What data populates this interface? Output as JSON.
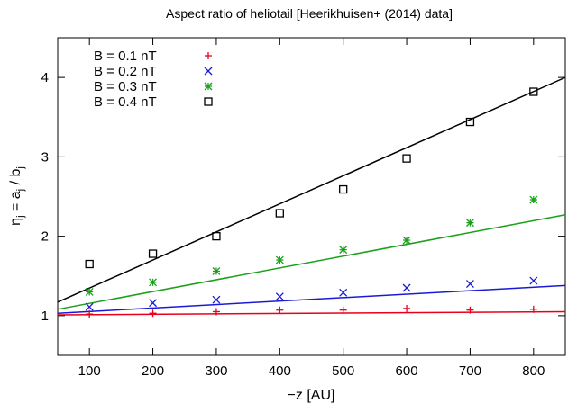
{
  "chart_data": {
    "type": "scatter",
    "title": "Aspect ratio of heliotail  [Heerikhuisen+ (2014) data]",
    "xlabel": "−z [AU]",
    "ylabel": {
      "base": "η",
      "sub1": "j",
      "mid": " = a",
      "sub2": "j",
      "tail": " / b",
      "sub3": "j"
    },
    "xlim": [
      50,
      850
    ],
    "ylim": [
      0.5,
      4.5
    ],
    "xticks": [
      100,
      200,
      300,
      400,
      500,
      600,
      700,
      800
    ],
    "yticks": [
      1,
      2,
      3,
      4
    ],
    "grid": false,
    "legend_position": "top-left",
    "series": [
      {
        "name": "B = 0.1 nT",
        "color": "#e8001c",
        "marker": "plus",
        "x": [
          100,
          200,
          300,
          400,
          500,
          600,
          700,
          800
        ],
        "y": [
          1.02,
          1.03,
          1.05,
          1.07,
          1.07,
          1.09,
          1.07,
          1.08
        ],
        "fit": {
          "x": [
            50,
            850
          ],
          "y": [
            1.01,
            1.05
          ]
        }
      },
      {
        "name": "B = 0.2 nT",
        "color": "#1a1ad6",
        "marker": "cross",
        "x": [
          100,
          200,
          300,
          400,
          500,
          600,
          700,
          800
        ],
        "y": [
          1.11,
          1.16,
          1.2,
          1.24,
          1.29,
          1.35,
          1.4,
          1.44
        ],
        "fit": {
          "x": [
            50,
            850
          ],
          "y": [
            1.03,
            1.38
          ]
        }
      },
      {
        "name": "B = 0.3 nT",
        "color": "#1aa01a",
        "marker": "star",
        "x": [
          100,
          200,
          300,
          400,
          500,
          600,
          700,
          800
        ],
        "y": [
          1.3,
          1.42,
          1.56,
          1.7,
          1.83,
          1.95,
          2.17,
          2.46
        ],
        "fit": {
          "x": [
            50,
            850
          ],
          "y": [
            1.08,
            2.27
          ]
        }
      },
      {
        "name": "B = 0.4 nT",
        "color": "#000000",
        "marker": "square",
        "x": [
          100,
          200,
          300,
          400,
          500,
          600,
          700,
          800
        ],
        "y": [
          1.65,
          1.78,
          2.0,
          2.29,
          2.59,
          2.98,
          3.44,
          3.82
        ],
        "fit": {
          "x": [
            50,
            850
          ],
          "y": [
            1.17,
            4.0
          ]
        }
      }
    ]
  }
}
